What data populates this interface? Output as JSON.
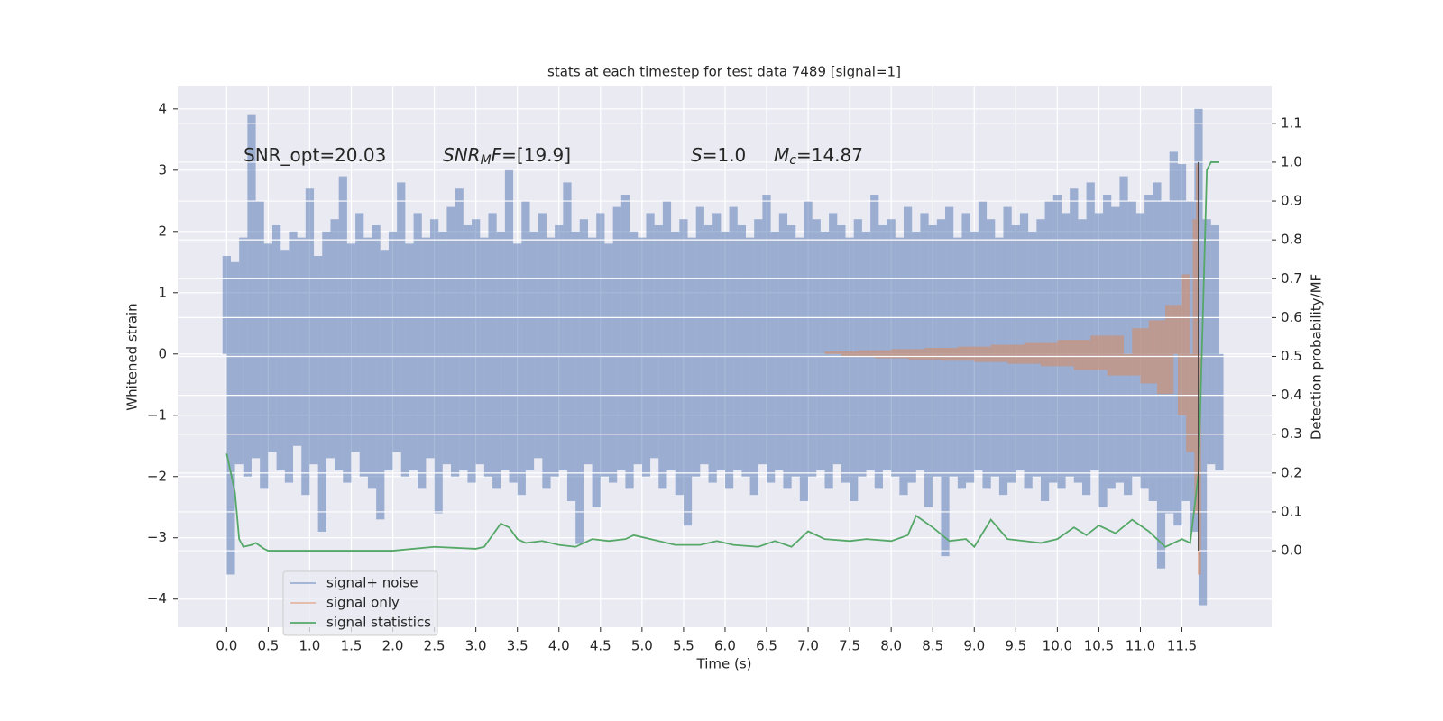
{
  "chart_data": {
    "type": "line",
    "title": "stats at each timestep for test data 7489 [signal=1]",
    "xlabel": "Time (s)",
    "ylabel": "Whitened strain",
    "y2label": "Detection probability/MF",
    "annotations": [
      [
        "SNR_opt=20.03"
      ],
      [
        "SNR",
        "M",
        "F",
        "=[19.9]"
      ],
      [
        "S",
        "=1.0"
      ],
      [
        "M",
        "c",
        "=14.87"
      ]
    ],
    "xlim": [
      -0.59,
      12.58
    ],
    "ylim": [
      -4.46,
      4.38
    ],
    "y2lim": [
      -0.197,
      1.197
    ],
    "xticks": [
      {
        "value": 0,
        "label": "0.0"
      },
      0.5,
      {
        "value": 1,
        "label": "1.0"
      },
      1.5,
      {
        "value": 2,
        "label": "2.0"
      },
      2.5,
      {
        "value": 3,
        "label": "3.0"
      },
      3.5,
      {
        "value": 4,
        "label": "4.0"
      },
      4.5,
      {
        "value": 5,
        "label": "5.0"
      },
      5.5,
      {
        "value": 6,
        "label": "6.0"
      },
      6.5,
      {
        "value": 7,
        "label": "7.0"
      },
      7.5,
      {
        "value": 8,
        "label": "8.0"
      },
      8.5,
      {
        "value": 9,
        "label": "9.0"
      },
      9.5,
      {
        "value": 10,
        "label": "10.0"
      },
      10.5,
      {
        "value": 11,
        "label": "11.0"
      },
      11.5
    ],
    "yticks": [
      {
        "value": -4,
        "label": "−4"
      },
      {
        "value": -3,
        "label": "−3"
      },
      {
        "value": -2,
        "label": "−2"
      },
      {
        "value": -1,
        "label": "−1"
      },
      0,
      1,
      2,
      3,
      4
    ],
    "y2ticks": [
      {
        "value": 0,
        "label": "0.0"
      },
      0.1,
      0.2,
      0.3,
      0.4,
      0.5,
      0.6,
      0.7,
      0.8,
      0.9,
      {
        "value": 1,
        "label": "1.0"
      },
      1.1
    ],
    "grid": true,
    "legend": "lower left",
    "series": [
      {
        "name": "signal+ noise",
        "color": "#4c72b0",
        "alpha": 0.5,
        "drawstyle": "bar",
        "x": [
          0,
          0.05,
          0.1,
          0.15,
          0.2,
          0.25,
          0.3,
          0.35,
          0.4,
          0.45,
          0.5,
          0.55,
          0.6,
          0.65,
          0.7,
          0.75,
          0.8,
          0.85,
          0.9,
          0.95,
          1,
          1.05,
          1.1,
          1.15,
          1.2,
          1.25,
          1.3,
          1.35,
          1.4,
          1.45,
          1.5,
          1.55,
          1.6,
          1.65,
          1.7,
          1.75,
          1.8,
          1.85,
          1.9,
          1.95,
          2,
          2.05,
          2.1,
          2.15,
          2.2,
          2.25,
          2.3,
          2.35,
          2.4,
          2.45,
          2.5,
          2.55,
          2.6,
          2.65,
          2.7,
          2.75,
          2.8,
          2.85,
          2.9,
          2.95,
          3,
          3.05,
          3.1,
          3.15,
          3.2,
          3.25,
          3.3,
          3.35,
          3.4,
          3.45,
          3.5,
          3.55,
          3.6,
          3.65,
          3.7,
          3.75,
          3.8,
          3.85,
          3.9,
          3.95,
          4,
          4.05,
          4.1,
          4.15,
          4.2,
          4.25,
          4.3,
          4.35,
          4.4,
          4.45,
          4.5,
          4.55,
          4.6,
          4.65,
          4.7,
          4.75,
          4.8,
          4.85,
          4.9,
          4.95,
          5,
          5.05,
          5.1,
          5.15,
          5.2,
          5.25,
          5.3,
          5.35,
          5.4,
          5.45,
          5.5,
          5.55,
          5.6,
          5.65,
          5.7,
          5.75,
          5.8,
          5.85,
          5.9,
          5.95,
          6,
          6.05,
          6.1,
          6.15,
          6.2,
          6.25,
          6.3,
          6.35,
          6.4,
          6.45,
          6.5,
          6.55,
          6.6,
          6.65,
          6.7,
          6.75,
          6.8,
          6.85,
          6.9,
          6.95,
          7,
          7.05,
          7.1,
          7.15,
          7.2,
          7.25,
          7.3,
          7.35,
          7.4,
          7.45,
          7.5,
          7.55,
          7.6,
          7.65,
          7.7,
          7.75,
          7.8,
          7.85,
          7.9,
          7.95,
          8,
          8.05,
          8.1,
          8.15,
          8.2,
          8.25,
          8.3,
          8.35,
          8.4,
          8.45,
          8.5,
          8.55,
          8.6,
          8.65,
          8.7,
          8.75,
          8.8,
          8.85,
          8.9,
          8.95,
          9,
          9.05,
          9.1,
          9.15,
          9.2,
          9.25,
          9.3,
          9.35,
          9.4,
          9.45,
          9.5,
          9.55,
          9.6,
          9.65,
          9.7,
          9.75,
          9.8,
          9.85,
          9.9,
          9.95,
          10,
          10.05,
          10.1,
          10.15,
          10.2,
          10.25,
          10.3,
          10.35,
          10.4,
          10.45,
          10.5,
          10.55,
          10.6,
          10.65,
          10.7,
          10.75,
          10.8,
          10.85,
          10.9,
          10.95,
          11,
          11.05,
          11.1,
          11.15,
          11.2,
          11.25,
          11.3,
          11.35,
          11.4,
          11.45,
          11.5,
          11.55,
          11.6,
          11.65,
          11.7,
          11.75,
          11.8,
          11.85,
          11.9,
          11.95
        ],
        "values": [
          1.6,
          -3.6,
          1.5,
          -1.8,
          1.9,
          -2.0,
          3.9,
          -1.7,
          2.5,
          -2.2,
          1.8,
          -1.6,
          2.1,
          -1.9,
          1.7,
          -2.1,
          2.0,
          -1.5,
          1.9,
          -2.3,
          2.7,
          -1.8,
          1.6,
          -2.9,
          2.0,
          -1.7,
          2.2,
          -1.9,
          2.9,
          -2.1,
          1.8,
          -1.6,
          2.3,
          -2.0,
          1.9,
          -2.2,
          2.1,
          -2.7,
          1.7,
          -1.9,
          2.0,
          -1.6,
          2.8,
          -2.0,
          1.8,
          -1.9,
          2.3,
          -2.2,
          1.9,
          -1.7,
          2.2,
          -2.6,
          2.0,
          -1.8,
          2.4,
          -2.0,
          2.7,
          -1.9,
          2.1,
          -2.1,
          2.2,
          -1.8,
          1.9,
          -2.0,
          2.3,
          -2.2,
          2.0,
          -1.9,
          3.0,
          -2.1,
          1.8,
          -2.3,
          2.5,
          -1.9,
          2.0,
          -1.7,
          2.3,
          -2.2,
          1.9,
          -2.0,
          2.1,
          -1.9,
          2.8,
          -2.4,
          2.0,
          -3.1,
          2.2,
          -1.8,
          1.9,
          -2.5,
          2.3,
          -2.0,
          1.8,
          -2.1,
          2.4,
          -1.9,
          2.6,
          -2.2,
          2.0,
          -1.8,
          1.9,
          -2.0,
          2.3,
          -1.7,
          2.1,
          -2.2,
          2.5,
          -1.9,
          2.0,
          -2.3,
          2.2,
          -2.8,
          1.9,
          -2.0,
          2.4,
          -1.8,
          2.1,
          -2.1,
          2.3,
          -1.9,
          2.0,
          -2.2,
          2.4,
          -1.9,
          2.1,
          -2.0,
          1.9,
          -2.3,
          2.2,
          -1.8,
          2.6,
          -2.1,
          2.0,
          -1.9,
          2.3,
          -2.2,
          2.1,
          -2.0,
          1.9,
          -2.4,
          2.5,
          -2.0,
          2.2,
          -1.9,
          2.0,
          -2.2,
          2.3,
          -1.8,
          2.1,
          -2.1,
          1.9,
          -2.4,
          2.2,
          -2.0,
          2.0,
          -1.9,
          2.6,
          -2.2,
          2.1,
          -1.9,
          2.2,
          -2.0,
          1.9,
          -2.3,
          2.4,
          -2.1,
          2.0,
          -1.9,
          2.3,
          -2.5,
          2.1,
          -2.0,
          2.2,
          -3.3,
          2.4,
          -2.0,
          1.9,
          -2.2,
          2.3,
          -2.1,
          2.0,
          -1.9,
          2.5,
          -2.2,
          2.2,
          -2.0,
          1.9,
          -2.3,
          2.4,
          -2.1,
          2.1,
          -1.9,
          2.3,
          -2.2,
          2.0,
          -2.0,
          2.2,
          -2.4,
          2.5,
          -2.1,
          2.6,
          -2.2,
          2.3,
          -2.0,
          2.7,
          -2.1,
          2.2,
          -2.3,
          2.8,
          -1.9,
          2.3,
          -2.5,
          2.6,
          -2.2,
          2.4,
          -2.1,
          2.9,
          -2.3,
          2.5,
          -2.0,
          2.3,
          -2.2,
          2.6,
          -2.4,
          2.8,
          -3.5,
          2.5,
          -2.6,
          3.3,
          -2.8,
          3.1,
          -2.4,
          2.5,
          -2.9,
          4.0,
          -4.1,
          2.2,
          -1.8,
          2.1,
          -1.9
        ]
      },
      {
        "name": "signal only",
        "color": "#dd8452",
        "alpha": 0.5,
        "drawstyle": "bar",
        "x": [
          7.4,
          7.6,
          7.8,
          8.0,
          8.2,
          8.4,
          8.6,
          8.8,
          9.0,
          9.2,
          9.4,
          9.6,
          9.8,
          10.0,
          10.2,
          10.4,
          10.6,
          10.8,
          11.0,
          11.1,
          11.2,
          11.3,
          11.4,
          11.5,
          11.55,
          11.6,
          11.65,
          11.67,
          11.69,
          11.71
        ],
        "values": [
          0.04,
          -0.05,
          0.06,
          -0.07,
          0.08,
          -0.09,
          0.1,
          -0.11,
          0.12,
          -0.13,
          0.15,
          -0.16,
          0.18,
          -0.2,
          0.23,
          -0.26,
          0.3,
          -0.35,
          0.42,
          -0.48,
          0.55,
          -0.65,
          0.8,
          -1.0,
          1.3,
          -1.6,
          2.2,
          -2.6,
          3.1,
          -3.6
        ]
      },
      {
        "name": "signal statistics",
        "color": "#55a868",
        "alpha": 1,
        "drawstyle": "line",
        "axis": "y2",
        "x": [
          0,
          0.1,
          0.15,
          0.2,
          0.3,
          0.35,
          0.45,
          0.5,
          1,
          2,
          2.5,
          3,
          3.1,
          3.3,
          3.4,
          3.5,
          3.6,
          3.8,
          4,
          4.2,
          4.4,
          4.6,
          4.8,
          4.9,
          5.2,
          5.4,
          5.7,
          5.9,
          6.1,
          6.4,
          6.6,
          6.8,
          7,
          7.2,
          7.5,
          7.7,
          8,
          8.2,
          8.3,
          8.5,
          8.7,
          8.9,
          9,
          9.2,
          9.4,
          9.6,
          9.8,
          10,
          10.2,
          10.35,
          10.5,
          10.7,
          10.9,
          11.1,
          11.3,
          11.5,
          11.6,
          11.7,
          11.8,
          11.85,
          11.95
        ],
        "values": [
          0.25,
          0.15,
          0.03,
          0.01,
          0.015,
          0.02,
          0.005,
          0,
          0,
          0,
          0.01,
          0.005,
          0.01,
          0.07,
          0.06,
          0.03,
          0.02,
          0.025,
          0.015,
          0.01,
          0.03,
          0.025,
          0.03,
          0.04,
          0.025,
          0.015,
          0.015,
          0.025,
          0.015,
          0.01,
          0.025,
          0.01,
          0.05,
          0.03,
          0.025,
          0.03,
          0.025,
          0.04,
          0.09,
          0.06,
          0.025,
          0.03,
          0.01,
          0.08,
          0.03,
          0.025,
          0.02,
          0.03,
          0.06,
          0.04,
          0.065,
          0.045,
          0.08,
          0.05,
          0.01,
          0.03,
          0.02,
          0.2,
          0.98,
          1,
          1
        ]
      }
    ],
    "vline": {
      "x": 11.7,
      "y2": [
        0,
        1
      ],
      "color": "#333333"
    }
  }
}
